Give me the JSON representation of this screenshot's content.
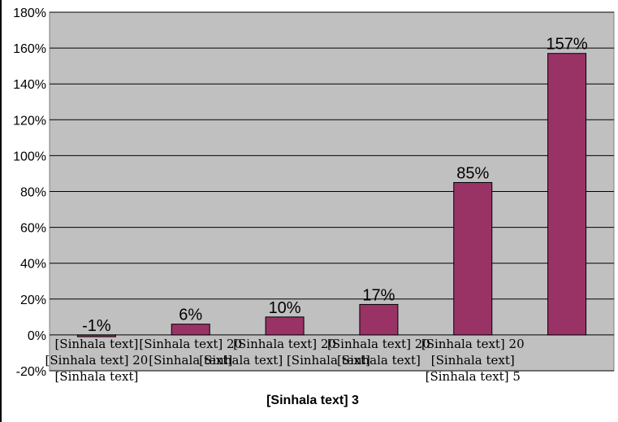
{
  "colors": {
    "plot_background": "#c0c0c0",
    "bar": "#993366",
    "gridline": "#000000"
  },
  "chart_data": {
    "type": "bar",
    "title": "",
    "xlabel": "[Sinhala text] 3",
    "ylabel": "",
    "ylim": [
      -20,
      180
    ],
    "ytick_step": 20,
    "ytick_labels": [
      "-20%",
      "0%",
      "20%",
      "40%",
      "60%",
      "80%",
      "100%",
      "120%",
      "140%",
      "160%",
      "180%"
    ],
    "grid": true,
    "legend": "none",
    "categories": [
      [
        "[Sinhala text]",
        "[Sinhala text] 20",
        "[Sinhala text]"
      ],
      [
        "[Sinhala text] 20",
        "[Sinhala text]"
      ],
      [
        "[Sinhala text] 20",
        "[Sinhala text] [Sinhala text]"
      ],
      [
        "[Sinhala text] 20",
        "[Sinhala text]"
      ],
      [
        "[Sinhala text] 20",
        "[Sinhala text]",
        "[Sinhala text] 5"
      ],
      []
    ],
    "values": [
      -1,
      6,
      10,
      17,
      85,
      157
    ],
    "data_labels": [
      "-1%",
      "6%",
      "10%",
      "17%",
      "85%",
      "157%"
    ]
  }
}
